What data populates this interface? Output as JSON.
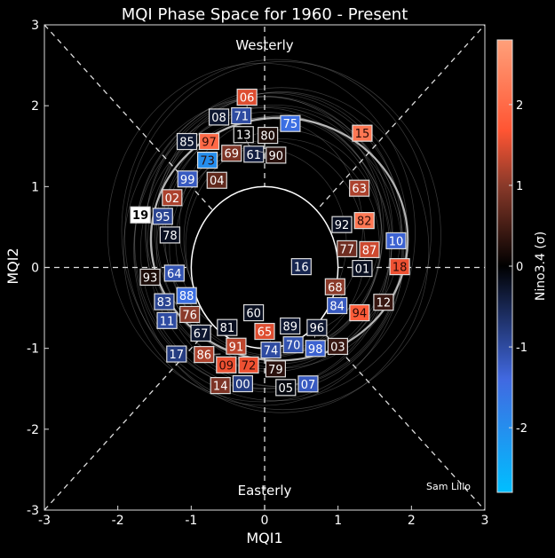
{
  "chart_data": {
    "type": "scatter",
    "title": "MQI Phase Space for 1960 - Present",
    "xlabel": "MQI1",
    "ylabel": "MQI2",
    "xlim": [
      -3,
      3
    ],
    "ylim": [
      -3,
      3
    ],
    "xticks": [
      "-3",
      "-2",
      "-1",
      "0",
      "1",
      "2",
      "3"
    ],
    "yticks": [
      "-3",
      "-2",
      "-1",
      "0",
      "1",
      "2",
      "3"
    ],
    "annotations": {
      "top": "Westerly",
      "bottom": "Easterly",
      "credit": "Sam Lillo"
    },
    "grid": false,
    "reference_circle_radius": 1,
    "colorbar": {
      "label": "Nino3.4 (σ)",
      "range": [
        -2.8,
        2.8
      ],
      "ticks": [
        "2",
        "1",
        "0",
        "-1",
        "-2"
      ],
      "colors": {
        "low": "#00bfff",
        "mid_low": "#4169e1",
        "zero": "#000000",
        "mid_high": "#ff5533",
        "high": "#ffa07a"
      }
    },
    "highlight_color": "#ffffff",
    "points": [
      {
        "label": "08",
        "x": -0.58,
        "y": 1.86,
        "nino": -0.3
      },
      {
        "label": "06",
        "x": -0.24,
        "y": 1.89,
        "nino": 1.5
      },
      {
        "label": "71",
        "x": -0.36,
        "y": 1.78,
        "nino": -1.0
      },
      {
        "label": "13",
        "x": -0.27,
        "y": 1.69,
        "nino": 0.0
      },
      {
        "label": "61",
        "x": -0.25,
        "y": 1.57,
        "nino": -0.4
      },
      {
        "label": "80",
        "x": 0.0,
        "y": 1.57,
        "nino": 0.2
      },
      {
        "label": "75",
        "x": 0.35,
        "y": 1.78,
        "nino": -1.5
      },
      {
        "label": "85",
        "x": -0.83,
        "y": 1.5,
        "nino": -0.3
      },
      {
        "label": "73",
        "x": -0.73,
        "y": 1.37,
        "nino": -2.0
      },
      {
        "label": "97",
        "x": -0.65,
        "y": 1.49,
        "nino": 2.0
      },
      {
        "label": "69",
        "x": -0.45,
        "y": 1.5,
        "nino": 0.9
      },
      {
        "label": "90",
        "x": -0.1,
        "y": 1.44,
        "nino": 0.3
      },
      {
        "label": "15",
        "x": 1.33,
        "y": 1.66,
        "nino": 2.2
      },
      {
        "label": "04",
        "x": -0.65,
        "y": 1.14,
        "nino": 0.7
      },
      {
        "label": "99",
        "x": -1.05,
        "y": 1.03,
        "nino": -1.2
      },
      {
        "label": "02",
        "x": -1.26,
        "y": 0.88,
        "nino": 1.2
      },
      {
        "label": "95",
        "x": -1.44,
        "y": 0.63,
        "nino": -0.9
      },
      {
        "label": "78",
        "x": -1.29,
        "y": 0.49,
        "nino": -0.2
      },
      {
        "label": "63",
        "x": 1.29,
        "y": 0.98,
        "nino": 1.2
      },
      {
        "label": "92",
        "x": 1.12,
        "y": 0.53,
        "nino": -0.2
      },
      {
        "label": "82",
        "x": 1.29,
        "y": 0.58,
        "nino": 2.2
      },
      {
        "label": "10",
        "x": 1.79,
        "y": 0.33,
        "nino": -1.3
      },
      {
        "label": "77",
        "x": 1.23,
        "y": 0.22,
        "nino": 0.8
      },
      {
        "label": "87",
        "x": 1.32,
        "y": 0.21,
        "nino": 1.4
      },
      {
        "label": "01",
        "x": 1.33,
        "y": 0.01,
        "nino": -0.2
      },
      {
        "label": "18",
        "x": 1.84,
        "y": 0.01,
        "nino": 1.6
      },
      {
        "label": "16",
        "x": 0.5,
        "y": 0.01,
        "nino": -0.5
      },
      {
        "label": "64",
        "x": -1.23,
        "y": -0.07,
        "nino": -1.1
      },
      {
        "label": "93",
        "x": -1.56,
        "y": -0.12,
        "nino": 0.2
      },
      {
        "label": "68",
        "x": 0.96,
        "y": -0.3,
        "nino": 1.0
      },
      {
        "label": "84",
        "x": 1.0,
        "y": -0.41,
        "nino": -1.2
      },
      {
        "label": "12",
        "x": 1.62,
        "y": -0.43,
        "nino": 0.4
      },
      {
        "label": "94",
        "x": 1.28,
        "y": -0.56,
        "nino": 1.8
      },
      {
        "label": "83",
        "x": -1.33,
        "y": -0.46,
        "nino": -0.9
      },
      {
        "label": "88",
        "x": -1.1,
        "y": -0.43,
        "nino": -1.5
      },
      {
        "label": "76",
        "x": -1.02,
        "y": -0.57,
        "nino": 1.0
      },
      {
        "label": "11",
        "x": -1.33,
        "y": -0.62,
        "nino": -1.0
      },
      {
        "label": "67",
        "x": -0.87,
        "y": -0.74,
        "nino": -0.3
      },
      {
        "label": "60",
        "x": -0.15,
        "y": -0.64,
        "nino": -0.2
      },
      {
        "label": "81",
        "x": -0.51,
        "y": -0.85,
        "nino": -0.2
      },
      {
        "label": "89",
        "x": 0.31,
        "y": -0.75,
        "nino": -0.3
      },
      {
        "label": "65",
        "x": 0.0,
        "y": -0.89,
        "nino": 1.5
      },
      {
        "label": "74",
        "x": 0.08,
        "y": -0.91,
        "nino": -1.0
      },
      {
        "label": "70",
        "x": 0.44,
        "y": -0.93,
        "nino": -1.1
      },
      {
        "label": "96",
        "x": 0.68,
        "y": -0.87,
        "nino": -0.3
      },
      {
        "label": "98",
        "x": 0.79,
        "y": -0.9,
        "nino": -1.3
      },
      {
        "label": "03",
        "x": 0.88,
        "y": -0.95,
        "nino": 0.4
      },
      {
        "label": "86",
        "x": -0.6,
        "y": -1.07,
        "nino": 1.2
      },
      {
        "label": "91",
        "x": -0.48,
        "y": -1.01,
        "nino": 1.3
      },
      {
        "label": "72",
        "x": -0.36,
        "y": -1.12,
        "nino": 1.6
      },
      {
        "label": "09",
        "x": -0.47,
        "y": -1.21,
        "nino": 1.6
      },
      {
        "label": "17",
        "x": -1.2,
        "y": -1.07,
        "nino": -0.8
      },
      {
        "label": "79",
        "x": 0.15,
        "y": -1.23,
        "nino": 0.3
      },
      {
        "label": "00",
        "x": -0.31,
        "y": -1.38,
        "nino": -0.8
      },
      {
        "label": "14",
        "x": -0.59,
        "y": -1.46,
        "nino": 0.9
      },
      {
        "label": "05",
        "x": 0.36,
        "y": -1.44,
        "nino": -0.1
      },
      {
        "label": "07",
        "x": 0.52,
        "y": -1.44,
        "nino": -1.2
      },
      {
        "label": "19",
        "x": -1.64,
        "y": 0.65,
        "nino": null,
        "highlight": true
      }
    ]
  }
}
